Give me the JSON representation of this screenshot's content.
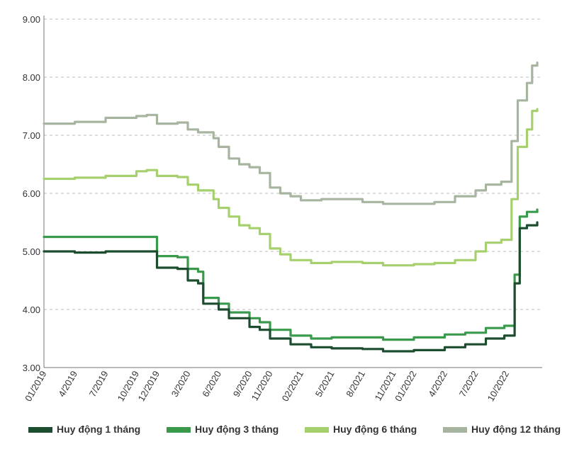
{
  "chart_data": {
    "type": "line",
    "title": "",
    "xlabel": "",
    "ylabel": "",
    "ylim": [
      3.0,
      9.0
    ],
    "y_ticks": [
      "3.00",
      "4.00",
      "5.00",
      "6.00",
      "7.00",
      "8.00",
      "9.00"
    ],
    "y_tick_values": [
      3,
      4,
      5,
      6,
      7,
      8,
      9
    ],
    "x_range": [
      0,
      48
    ],
    "x_ticks": [
      {
        "label": "01/2019",
        "t": 0
      },
      {
        "label": "4/2019",
        "t": 3
      },
      {
        "label": "7/2019",
        "t": 6
      },
      {
        "label": "10/2019",
        "t": 9
      },
      {
        "label": "12/2019",
        "t": 11
      },
      {
        "label": "3/2020",
        "t": 14
      },
      {
        "label": "6/2020",
        "t": 17
      },
      {
        "label": "9/2020",
        "t": 20
      },
      {
        "label": "11/2020",
        "t": 22
      },
      {
        "label": "02/2021",
        "t": 25
      },
      {
        "label": "5/2021",
        "t": 28
      },
      {
        "label": "8/2021",
        "t": 31
      },
      {
        "label": "11/2021",
        "t": 34
      },
      {
        "label": "01/2022",
        "t": 36
      },
      {
        "label": "4/2022",
        "t": 39
      },
      {
        "label": "7/2022",
        "t": 42
      },
      {
        "label": "10/2022",
        "t": 45
      }
    ],
    "grid": "horizontal dashed",
    "legend_position": "bottom",
    "series": [
      {
        "name": "Huy động 1 tháng",
        "color": "#1b4d2e",
        "points": [
          [
            0,
            5.0
          ],
          [
            3,
            4.98
          ],
          [
            6,
            5.0
          ],
          [
            9,
            5.0
          ],
          [
            10.5,
            5.0
          ],
          [
            11,
            4.72
          ],
          [
            13,
            4.7
          ],
          [
            14,
            4.5
          ],
          [
            15,
            4.45
          ],
          [
            15.5,
            4.1
          ],
          [
            17,
            4.0
          ],
          [
            18,
            3.85
          ],
          [
            20,
            3.7
          ],
          [
            21,
            3.65
          ],
          [
            22,
            3.5
          ],
          [
            24,
            3.4
          ],
          [
            26,
            3.35
          ],
          [
            28,
            3.33
          ],
          [
            31,
            3.32
          ],
          [
            33,
            3.28
          ],
          [
            36,
            3.3
          ],
          [
            39,
            3.35
          ],
          [
            41,
            3.4
          ],
          [
            43,
            3.5
          ],
          [
            44.8,
            3.55
          ],
          [
            45.8,
            4.45
          ],
          [
            46.3,
            5.4
          ],
          [
            47,
            5.45
          ],
          [
            48,
            5.5
          ]
        ]
      },
      {
        "name": "Huy động 3 tháng",
        "color": "#3a9a4c",
        "points": [
          [
            0,
            5.25
          ],
          [
            3,
            5.25
          ],
          [
            6,
            5.25
          ],
          [
            9,
            5.25
          ],
          [
            10.5,
            5.25
          ],
          [
            11,
            4.92
          ],
          [
            13,
            4.9
          ],
          [
            14,
            4.7
          ],
          [
            15,
            4.65
          ],
          [
            15.5,
            4.2
          ],
          [
            17,
            4.1
          ],
          [
            18,
            3.95
          ],
          [
            20,
            3.85
          ],
          [
            21,
            3.78
          ],
          [
            22,
            3.65
          ],
          [
            24,
            3.55
          ],
          [
            26,
            3.5
          ],
          [
            28,
            3.52
          ],
          [
            31,
            3.52
          ],
          [
            33,
            3.48
          ],
          [
            36,
            3.52
          ],
          [
            39,
            3.57
          ],
          [
            41,
            3.6
          ],
          [
            43,
            3.68
          ],
          [
            44.8,
            3.72
          ],
          [
            45.8,
            4.6
          ],
          [
            46.3,
            5.6
          ],
          [
            47,
            5.68
          ],
          [
            48,
            5.72
          ]
        ]
      },
      {
        "name": "Huy động 6 tháng",
        "color": "#a6d06e",
        "points": [
          [
            0,
            6.25
          ],
          [
            3,
            6.27
          ],
          [
            6,
            6.3
          ],
          [
            9,
            6.38
          ],
          [
            10,
            6.4
          ],
          [
            11,
            6.3
          ],
          [
            13,
            6.28
          ],
          [
            14,
            6.15
          ],
          [
            15,
            6.05
          ],
          [
            16.5,
            5.9
          ],
          [
            17,
            5.75
          ],
          [
            18,
            5.6
          ],
          [
            19,
            5.45
          ],
          [
            20,
            5.4
          ],
          [
            21,
            5.3
          ],
          [
            22,
            5.05
          ],
          [
            23,
            4.95
          ],
          [
            24,
            4.85
          ],
          [
            26,
            4.8
          ],
          [
            28,
            4.82
          ],
          [
            31,
            4.8
          ],
          [
            33,
            4.76
          ],
          [
            36,
            4.78
          ],
          [
            38,
            4.8
          ],
          [
            40,
            4.85
          ],
          [
            42,
            5.0
          ],
          [
            43,
            5.15
          ],
          [
            44.5,
            5.2
          ],
          [
            45.5,
            5.9
          ],
          [
            46.1,
            6.8
          ],
          [
            47,
            7.1
          ],
          [
            47.5,
            7.42
          ],
          [
            48,
            7.45
          ]
        ]
      },
      {
        "name": "Huy động 12 tháng",
        "color": "#a7b5a0",
        "points": [
          [
            0,
            7.2
          ],
          [
            3,
            7.23
          ],
          [
            6,
            7.3
          ],
          [
            9,
            7.33
          ],
          [
            10,
            7.35
          ],
          [
            11,
            7.2
          ],
          [
            13,
            7.22
          ],
          [
            14,
            7.1
          ],
          [
            15,
            7.05
          ],
          [
            16.5,
            6.95
          ],
          [
            17,
            6.8
          ],
          [
            18,
            6.6
          ],
          [
            19,
            6.5
          ],
          [
            20,
            6.45
          ],
          [
            21,
            6.35
          ],
          [
            22,
            6.1
          ],
          [
            23,
            6.0
          ],
          [
            24,
            5.95
          ],
          [
            25,
            5.88
          ],
          [
            27,
            5.9
          ],
          [
            29,
            5.9
          ],
          [
            31,
            5.85
          ],
          [
            33,
            5.82
          ],
          [
            36,
            5.82
          ],
          [
            38,
            5.85
          ],
          [
            40,
            5.95
          ],
          [
            42,
            6.05
          ],
          [
            43,
            6.15
          ],
          [
            44.5,
            6.2
          ],
          [
            45.5,
            6.9
          ],
          [
            46.1,
            7.6
          ],
          [
            47,
            7.9
          ],
          [
            47.5,
            8.2
          ],
          [
            48,
            8.25
          ]
        ]
      }
    ]
  }
}
